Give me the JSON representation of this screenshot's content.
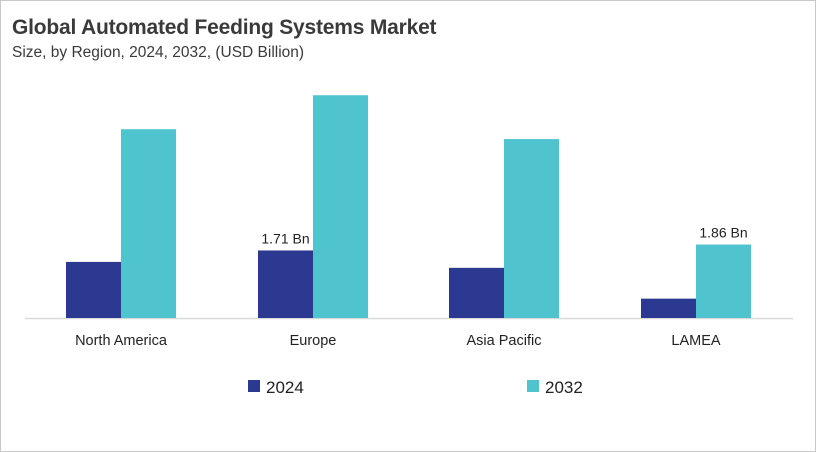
{
  "chart_data": {
    "type": "bar",
    "title": "Global Automated Feeding Systems Market",
    "subtitle": "Size, by Region, 2024, 2032, (USD Billion)",
    "categories": [
      "North America",
      "Europe",
      "Asia Pacific",
      "LAMEA"
    ],
    "series": [
      {
        "name": "2024",
        "color": "#2b3990",
        "values": [
          1.42,
          1.71,
          1.27,
          0.49
        ]
      },
      {
        "name": "2032",
        "color": "#4fc4cf",
        "values": [
          4.78,
          5.64,
          4.53,
          1.86
        ]
      }
    ],
    "data_labels": [
      {
        "series": 0,
        "category": 1,
        "text": "1.71 Bn"
      },
      {
        "series": 1,
        "category": 3,
        "text": "1.86 Bn"
      }
    ],
    "ylim": [
      0,
      6
    ],
    "grid": false,
    "legend": "bottom",
    "axis_color": "#d9d9d9"
  }
}
